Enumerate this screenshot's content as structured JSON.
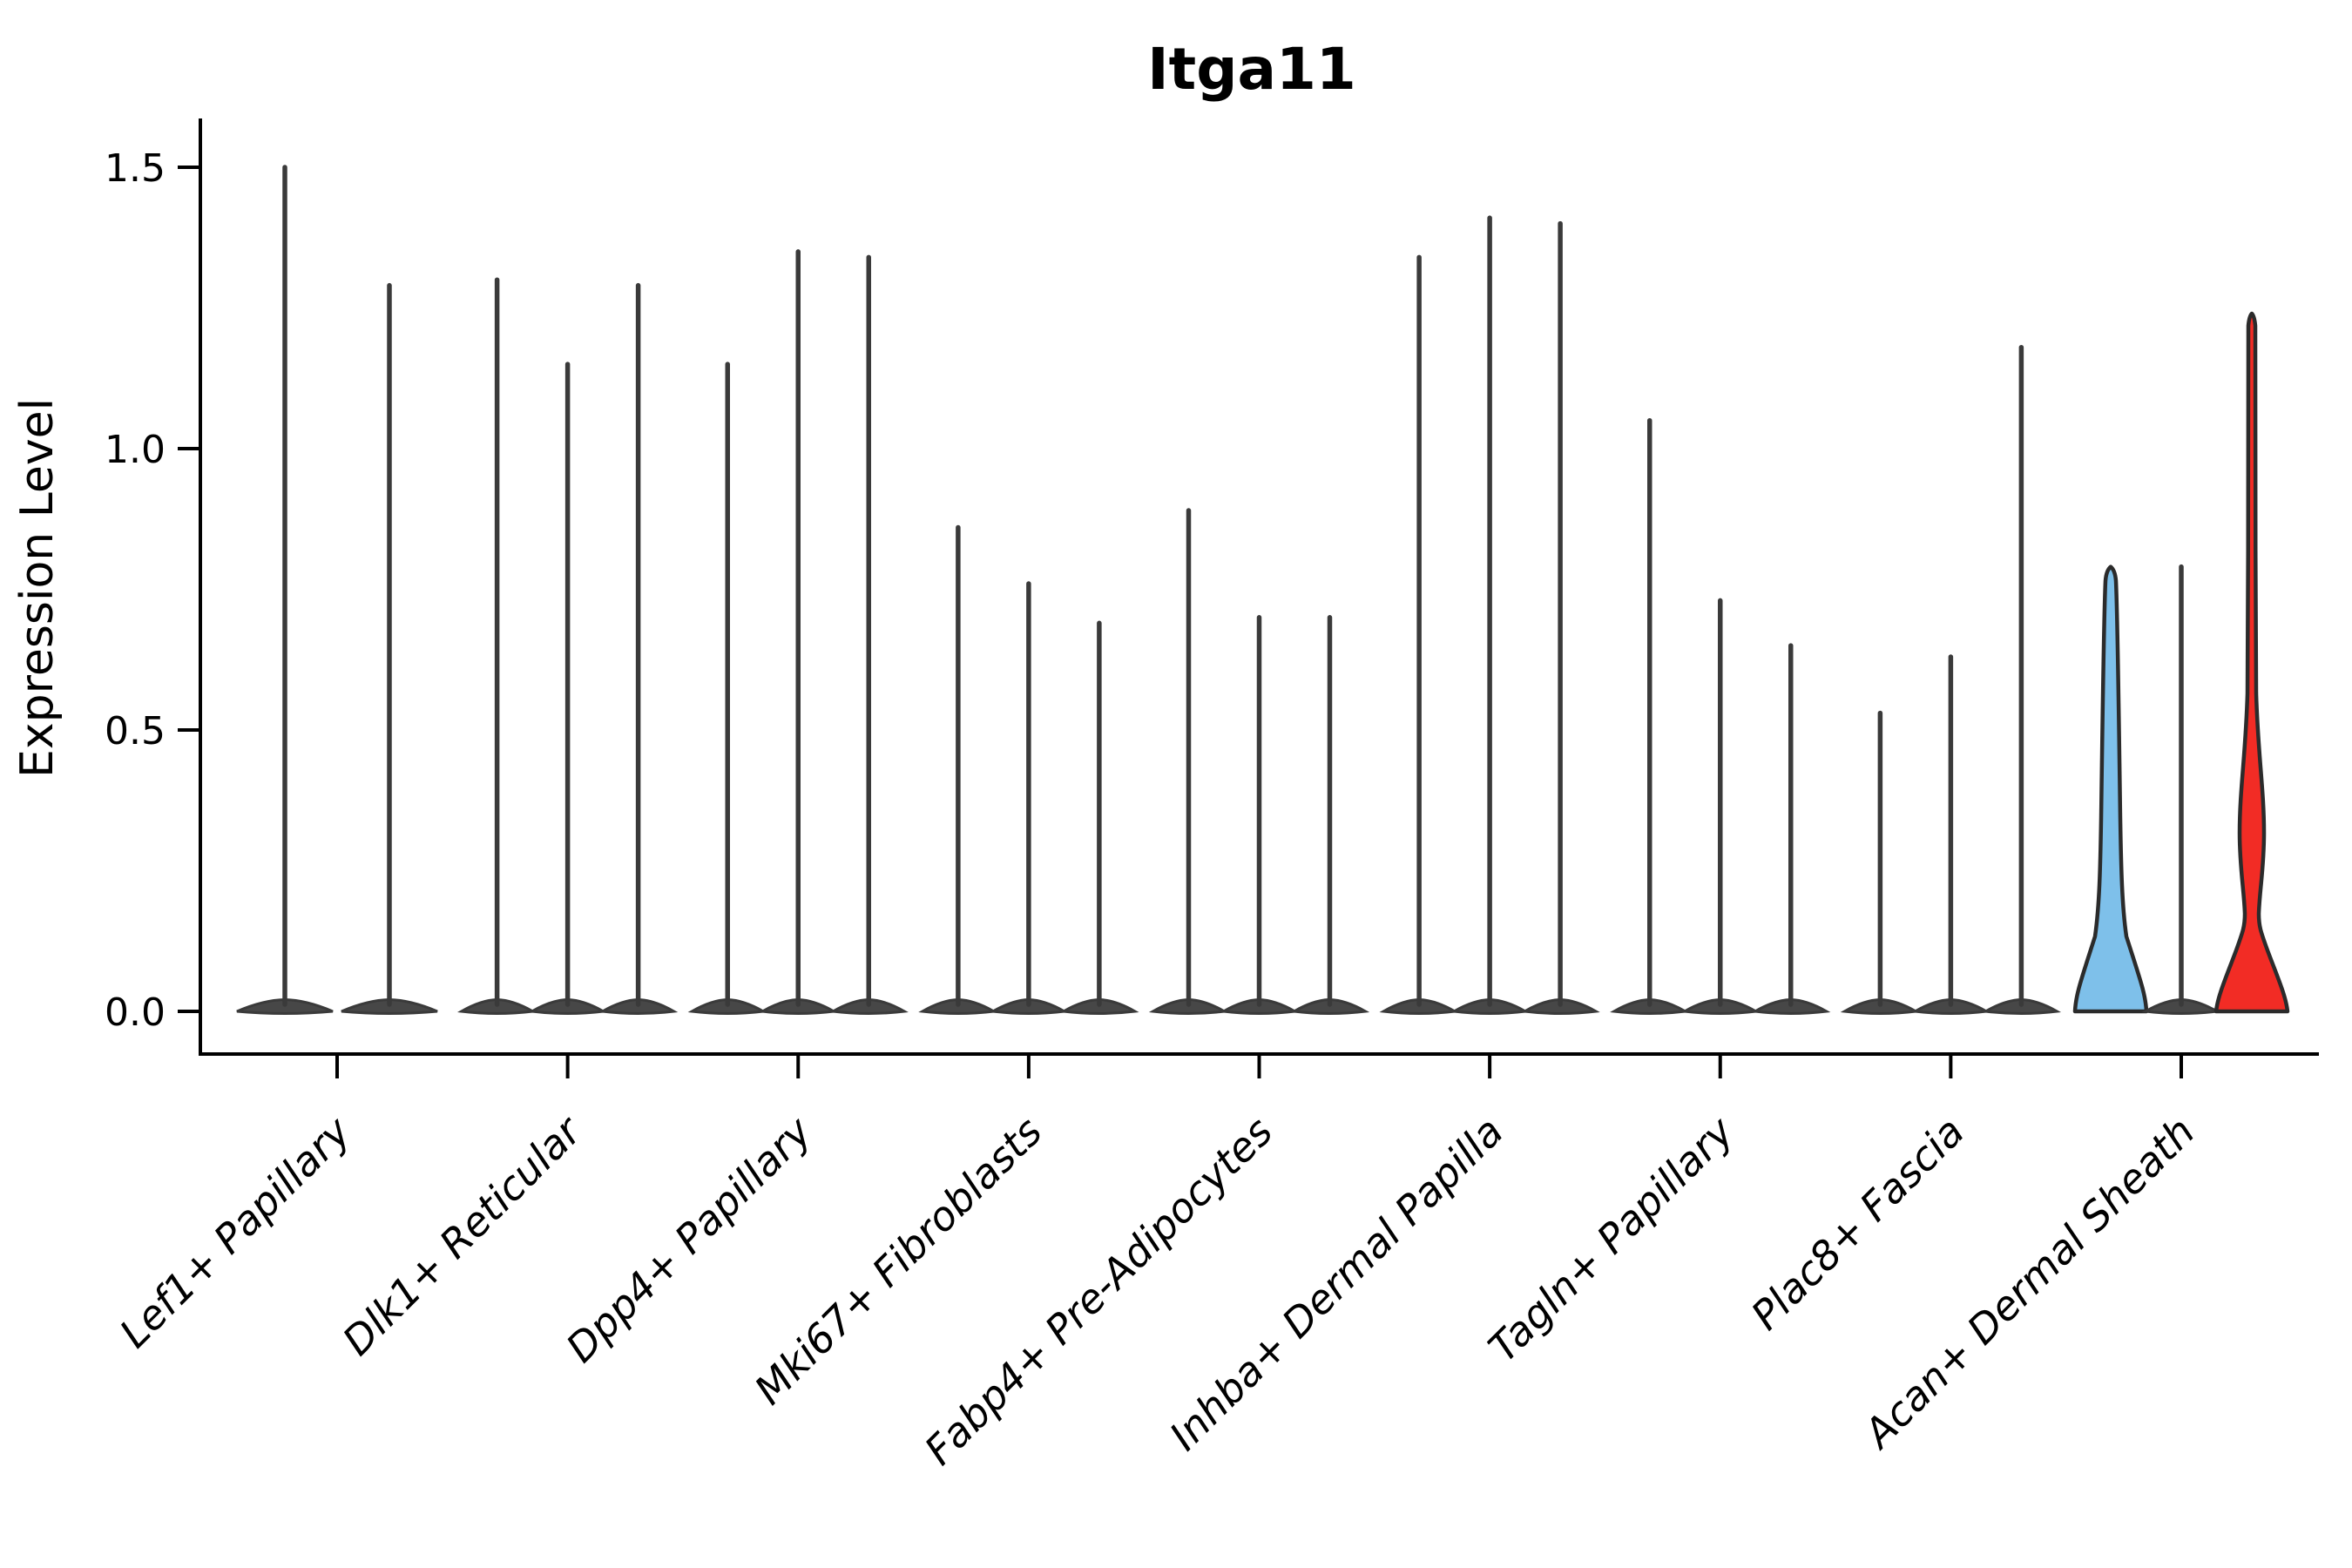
{
  "chart_data": {
    "type": "violin",
    "title": "Itga11",
    "ylabel": "Expression Level",
    "xlabel": "",
    "grid": false,
    "legend": "none",
    "ylim": [
      -0.076,
      1.58
    ],
    "yticks": [
      {
        "label": "0.0",
        "value": 0.0
      },
      {
        "label": "0.5",
        "value": 0.5
      },
      {
        "label": "1.0",
        "value": 1.0
      },
      {
        "label": "1.5",
        "value": 1.5
      }
    ],
    "categories": [
      "Lef1+ Papillary",
      "Dlk1+ Reticular",
      "Dpp4+ Papillary",
      "Mki67+ Fibroblasts",
      "Fabp4+ Pre-Adipocytes",
      "Inhba+ Dermal Papilla",
      "Tagln+ Papillary",
      "Plac8+ Fascia",
      "Acan+ Dermal Sheath"
    ],
    "groups": [
      {
        "label": "Lef1+ Papillary",
        "violins": [
          {
            "max": 1.5,
            "offset": -60,
            "style": "spike",
            "halfwidth": 55
          },
          {
            "max": 1.29,
            "offset": 60,
            "style": "spike",
            "halfwidth": 55
          }
        ]
      },
      {
        "label": "Dlk1+ Reticular",
        "violins": [
          {
            "max": 1.3,
            "offset": -81,
            "style": "spike",
            "halfwidth": 41
          },
          {
            "max": 1.15,
            "offset": 0,
            "style": "spike",
            "halfwidth": 41
          },
          {
            "max": 1.29,
            "offset": 81,
            "style": "spike",
            "halfwidth": 41
          }
        ]
      },
      {
        "label": "Dpp4+ Papillary",
        "violins": [
          {
            "max": 1.15,
            "offset": -81,
            "style": "spike",
            "halfwidth": 41
          },
          {
            "max": 1.35,
            "offset": 0,
            "style": "spike",
            "halfwidth": 41
          },
          {
            "max": 1.34,
            "offset": 81,
            "style": "spike",
            "halfwidth": 41
          }
        ]
      },
      {
        "label": "Mki67+ Fibroblasts",
        "violins": [
          {
            "max": 0.86,
            "offset": -81,
            "style": "spike",
            "halfwidth": 41
          },
          {
            "max": 0.76,
            "offset": 0,
            "style": "spike",
            "halfwidth": 41
          },
          {
            "max": 0.69,
            "offset": 81,
            "style": "spike",
            "halfwidth": 41
          }
        ]
      },
      {
        "label": "Fabp4+ Pre-Adipocytes",
        "violins": [
          {
            "max": 0.89,
            "offset": -81,
            "style": "spike",
            "halfwidth": 41
          },
          {
            "max": 0.7,
            "offset": 0,
            "style": "spike",
            "halfwidth": 41
          },
          {
            "max": 0.7,
            "offset": 81,
            "style": "spike",
            "halfwidth": 41
          }
        ]
      },
      {
        "label": "Inhba+ Dermal Papilla",
        "violins": [
          {
            "max": 1.34,
            "offset": -81,
            "style": "spike",
            "halfwidth": 41
          },
          {
            "max": 1.41,
            "offset": 0,
            "style": "spike",
            "halfwidth": 41
          },
          {
            "max": 1.4,
            "offset": 81,
            "style": "spike",
            "halfwidth": 41
          }
        ]
      },
      {
        "label": "Tagln+ Papillary",
        "violins": [
          {
            "max": 1.05,
            "offset": -81,
            "style": "spike",
            "halfwidth": 41
          },
          {
            "max": 0.73,
            "offset": 0,
            "style": "spike",
            "halfwidth": 41
          },
          {
            "max": 0.65,
            "offset": 81,
            "style": "spike",
            "halfwidth": 41
          }
        ]
      },
      {
        "label": "Plac8+ Fascia",
        "violins": [
          {
            "max": 0.53,
            "offset": -81,
            "style": "spike",
            "halfwidth": 41
          },
          {
            "max": 0.63,
            "offset": 0,
            "style": "spike",
            "halfwidth": 41
          },
          {
            "max": 1.18,
            "offset": 81,
            "style": "spike",
            "halfwidth": 41
          }
        ]
      },
      {
        "label": "Acan+ Dermal Sheath",
        "violins": [
          {
            "max": 0.79,
            "offset": -81,
            "style": "flask",
            "halfwidth": 41,
            "fill": "#7EC0EA"
          },
          {
            "max": 0.79,
            "offset": 0,
            "style": "spike",
            "halfwidth": 41
          },
          {
            "max": 1.24,
            "offset": 81,
            "style": "bulge-flask",
            "halfwidth": 41,
            "fill": "#F22C25"
          }
        ]
      }
    ],
    "colors": {
      "highlight_blue": "#7EC0EA",
      "highlight_red": "#F22C25",
      "violin_outline": "#2B2B2B",
      "spike_line": "#3A3A3A",
      "base_fill": "#474747",
      "axis": "#000000",
      "text": "#000000"
    }
  }
}
